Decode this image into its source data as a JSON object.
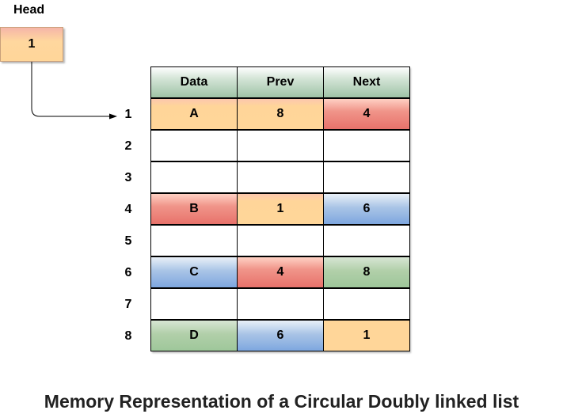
{
  "head": {
    "label": "Head",
    "value": "1"
  },
  "table": {
    "headers": [
      "Data",
      "Prev",
      "Next"
    ],
    "rows": [
      {
        "index": "1",
        "data": "A",
        "prev": "8",
        "next": "4"
      },
      {
        "index": "2",
        "data": "",
        "prev": "",
        "next": ""
      },
      {
        "index": "3",
        "data": "",
        "prev": "",
        "next": ""
      },
      {
        "index": "4",
        "data": "B",
        "prev": "1",
        "next": "6"
      },
      {
        "index": "5",
        "data": "",
        "prev": "",
        "next": ""
      },
      {
        "index": "6",
        "data": "C",
        "prev": "4",
        "next": "8"
      },
      {
        "index": "7",
        "data": "",
        "prev": "",
        "next": ""
      },
      {
        "index": "8",
        "data": "D",
        "prev": "6",
        "next": "1"
      }
    ]
  },
  "caption": "Memory Representation of a Circular Doubly linked list",
  "colors": {
    "orange": "#ffd699",
    "red": "#e8726b",
    "blue": "#7ea7df",
    "green": "#9ec79a",
    "header_green": "#9fc3a6"
  }
}
